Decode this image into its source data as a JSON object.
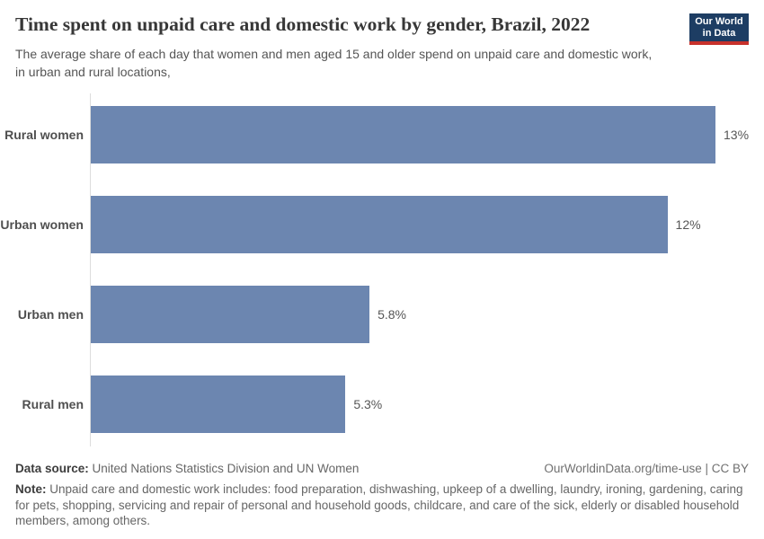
{
  "header": {
    "title": "Time spent on unpaid care and domestic work by gender, Brazil, 2022",
    "subtitle": "The average share of each day that women and men aged 15 and older spend on unpaid care and domestic work, in urban and rural locations,",
    "logo": {
      "line1": "Our World",
      "line2": "in Data",
      "bg_color": "#1d3d63",
      "stripe_color": "#c7312b"
    }
  },
  "chart_data": {
    "type": "bar",
    "orientation": "horizontal",
    "title": "Time spent on unpaid care and domestic work by gender, Brazil, 2022",
    "categories": [
      "Rural women",
      "Urban women",
      "Urban men",
      "Rural men"
    ],
    "values": [
      13,
      12,
      5.8,
      5.3
    ],
    "value_labels": [
      "13%",
      "12%",
      "5.8%",
      "5.3%"
    ],
    "xlabel": "",
    "ylabel": "",
    "xlim": [
      0,
      13
    ],
    "unit": "%",
    "bar_color": "#6c86b0",
    "grid": false,
    "legend": false
  },
  "footer": {
    "source_label": "Data source:",
    "source_text": "United Nations Statistics Division and UN Women",
    "link_text": "OurWorldinData.org/time-use | CC BY",
    "note_label": "Note:",
    "note_text": "Unpaid care and domestic work includes: food preparation, dishwashing, upkeep of a dwelling, laundry, ironing, gardening, caring for pets, shopping, servicing and repair of personal and household goods, childcare, and care of the sick, elderly or disabled household members, among others."
  }
}
